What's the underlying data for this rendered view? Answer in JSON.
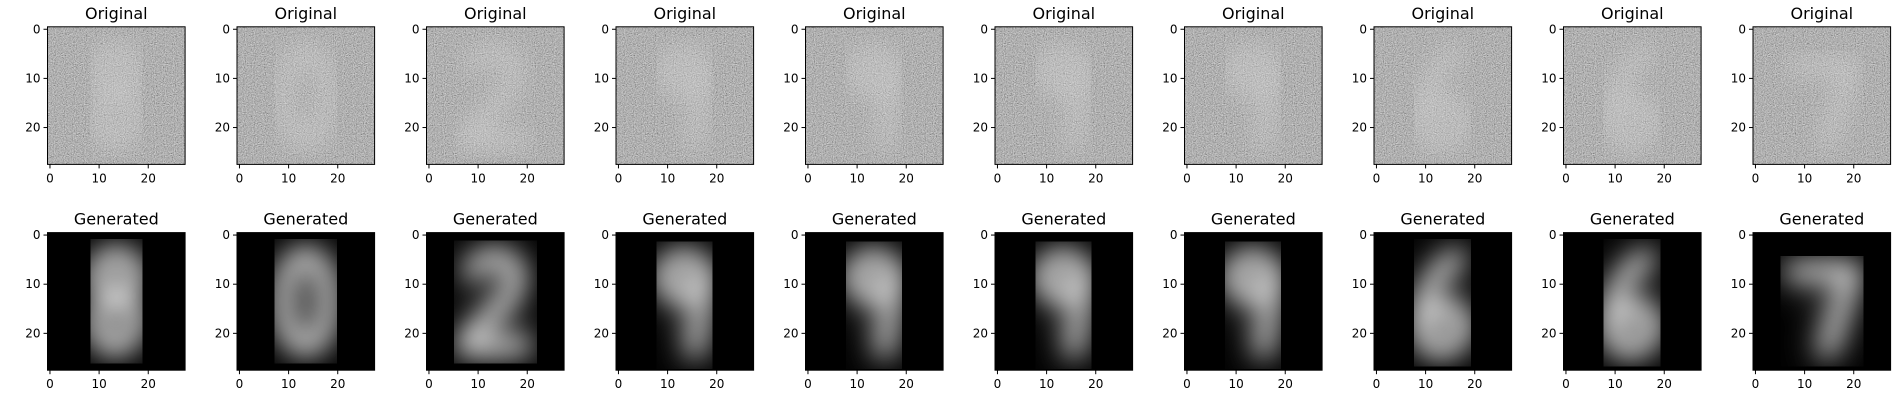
{
  "rows": [
    {
      "panels": [
        {
          "title": "Original"
        },
        {
          "title": "Original"
        },
        {
          "title": "Original"
        },
        {
          "title": "Original"
        },
        {
          "title": "Original"
        },
        {
          "title": "Original"
        },
        {
          "title": "Original"
        },
        {
          "title": "Original"
        },
        {
          "title": "Original"
        },
        {
          "title": "Original"
        }
      ]
    },
    {
      "panels": [
        {
          "title": "Generated"
        },
        {
          "title": "Generated"
        },
        {
          "title": "Generated"
        },
        {
          "title": "Generated"
        },
        {
          "title": "Generated"
        },
        {
          "title": "Generated"
        },
        {
          "title": "Generated"
        },
        {
          "title": "Generated"
        },
        {
          "title": "Generated"
        },
        {
          "title": "Generated"
        }
      ]
    }
  ],
  "axes": {
    "xlim": [
      -0.5,
      27.5
    ],
    "ylim": [
      -0.5,
      27.5
    ],
    "xticks": [
      0,
      10,
      20
    ],
    "yticks": [
      0,
      10,
      20
    ]
  }
}
